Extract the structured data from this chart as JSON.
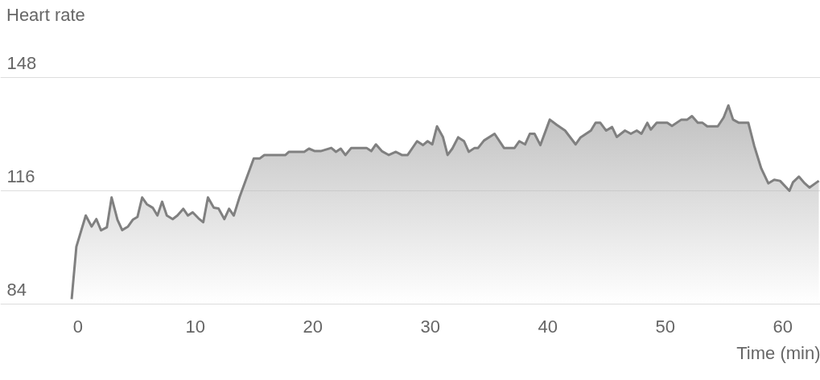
{
  "chart_data": {
    "type": "area",
    "title": "Heart rate",
    "xlabel": "Time (min)",
    "x": [
      -0.5,
      -0.1,
      0.7,
      1.2,
      1.6,
      2.0,
      2.5,
      2.9,
      3.4,
      3.8,
      4.3,
      4.7,
      5.1,
      5.5,
      5.9,
      6.4,
      6.8,
      7.2,
      7.6,
      8.1,
      8.5,
      9.0,
      9.4,
      9.8,
      10.3,
      10.7,
      11.1,
      11.6,
      12.0,
      12.5,
      12.9,
      13.3,
      13.8,
      15.0,
      15.5,
      15.9,
      17.7,
      18.0,
      19.3,
      19.7,
      20.2,
      20.7,
      21.6,
      22.0,
      22.4,
      22.8,
      23.3,
      24.6,
      25.0,
      25.4,
      25.9,
      26.5,
      27.1,
      27.6,
      28.1,
      28.9,
      29.4,
      29.8,
      30.2,
      30.6,
      31.1,
      31.5,
      31.9,
      32.4,
      32.9,
      33.3,
      33.8,
      34.1,
      34.6,
      35.5,
      36.3,
      37.2,
      37.6,
      38.1,
      38.5,
      38.9,
      39.4,
      40.2,
      40.8,
      41.5,
      42.4,
      42.8,
      43.7,
      44.1,
      44.5,
      45.0,
      45.5,
      45.9,
      46.6,
      47.1,
      47.6,
      48.0,
      48.5,
      48.8,
      49.3,
      50.2,
      50.6,
      51.4,
      51.9,
      52.3,
      52.8,
      53.2,
      53.6,
      54.5,
      55.0,
      55.4,
      55.8,
      56.3,
      57.1,
      57.6,
      58.2,
      58.8,
      59.3,
      59.8,
      60.6,
      60.9,
      61.4,
      61.9,
      62.3,
      63.1
    ],
    "series": [
      {
        "color": "#808080",
        "values": [
          85.3,
          100.1,
          108.9,
          105.8,
          107.9,
          104.7,
          105.6,
          114.0,
          107.7,
          104.8,
          105.8,
          107.7,
          108.5,
          114.0,
          112.1,
          111.1,
          108.9,
          112.8,
          108.9,
          107.9,
          108.9,
          110.8,
          108.9,
          109.8,
          108.1,
          107.0,
          114.0,
          111.1,
          110.9,
          107.9,
          110.8,
          108.9,
          114.2,
          125.0,
          125.0,
          126.0,
          126.0,
          126.9,
          126.9,
          127.8,
          127.1,
          127.1,
          128.0,
          126.9,
          127.8,
          126.0,
          128.0,
          128.0,
          127.1,
          129.0,
          127.1,
          126.0,
          126.9,
          126.0,
          126.0,
          129.9,
          128.8,
          129.9,
          129.0,
          134.1,
          131.1,
          126.0,
          127.8,
          131.0,
          129.9,
          126.9,
          128.0,
          128.0,
          130.1,
          132.0,
          128.0,
          128.0,
          129.9,
          129.0,
          132.0,
          132.0,
          128.8,
          136.0,
          134.5,
          132.9,
          129.0,
          130.9,
          132.9,
          135.1,
          135.1,
          132.9,
          133.9,
          131.1,
          132.9,
          132.0,
          132.9,
          132.0,
          135.1,
          133.2,
          135.1,
          135.1,
          134.2,
          136.0,
          136.0,
          137.0,
          135.1,
          135.1,
          134.1,
          134.1,
          136.6,
          140.0,
          136.0,
          135.1,
          135.1,
          128.6,
          122.2,
          118.0,
          119.0,
          118.7,
          115.9,
          118.3,
          119.9,
          118.0,
          116.8,
          118.7
        ]
      }
    ],
    "xlim": [
      -6.6,
      63.2
    ],
    "ylim": [
      84,
      148
    ],
    "xticks": [
      0,
      10,
      20,
      30,
      40,
      50,
      60
    ],
    "yticks": [
      84,
      116,
      148
    ],
    "grid": "y"
  }
}
